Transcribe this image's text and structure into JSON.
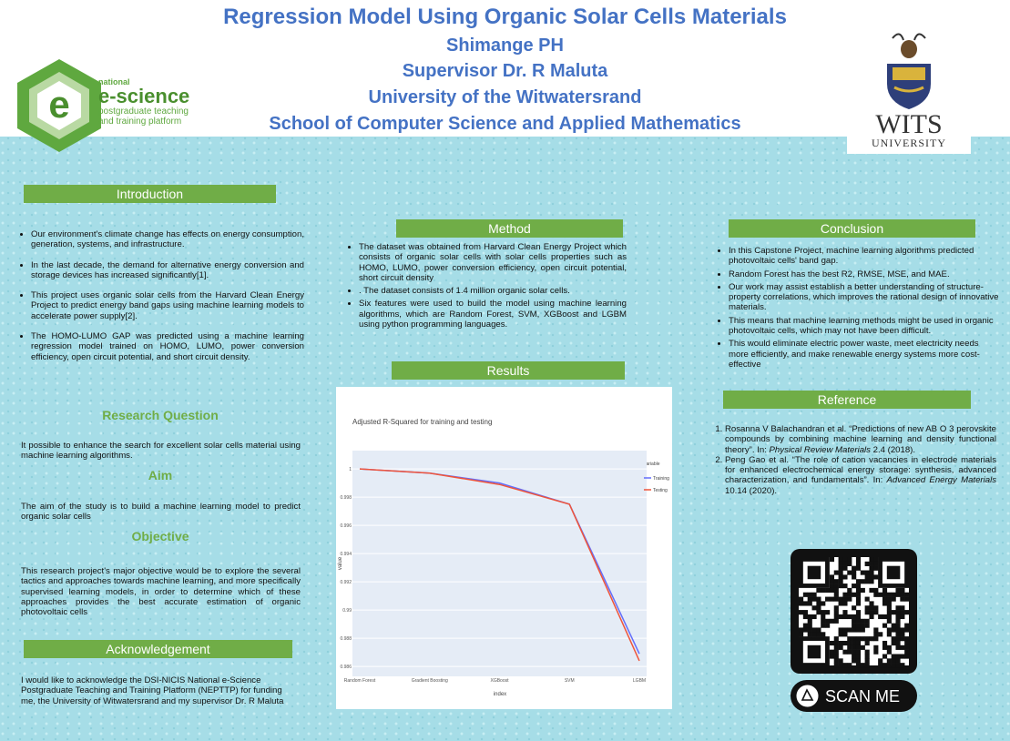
{
  "header": {
    "title": "Regression Model Using Organic Solar Cells Materials",
    "author": "Shimange PH",
    "supervisor": "Supervisor Dr. R Maluta",
    "university": "University of the Witwatersrand",
    "school": "School of Computer Science and Applied Mathematics"
  },
  "logos": {
    "escience_national": "national",
    "escience_name": "e-science",
    "escience_tagline": "postgraduate teaching and training platform",
    "wits_name": "WITS",
    "wits_sub": "UNIVERSITY"
  },
  "introduction": {
    "heading": "Introduction",
    "bullets": [
      "Our environment's climate change has effects on energy consumption, generation, systems, and infrastructure.",
      "In the last decade, the demand for alternative energy conversion and storage devices has increased significantly[1].",
      "This project uses organic solar cells from the Harvard Clean Energy Project to predict energy band gaps using machine learning models to accelerate power supply[2].",
      "The HOMO-LUMO GAP was predicted using a machine learning regression model trained on HOMO, LUMO, power conversion efficiency, open circuit potential, and short circuit density."
    ]
  },
  "research_question": {
    "heading": "Research Question",
    "text": "It possible to enhance the search for excellent solar cells material using machine learning algorithms."
  },
  "aim": {
    "heading": "Aim",
    "text": "The aim of the study is to build a machine learning model to predict organic solar cells"
  },
  "objective": {
    "heading": "Objective",
    "text": "This research project's major objective would be to explore the several tactics and approaches towards machine learning, and more specifically supervised learning models, in order to determine which of these approaches provides the best accurate estimation of organic photovoltaic cells"
  },
  "acknowledgement": {
    "heading": "Acknowledgement",
    "text": "I would like to acknowledge the DSI-NICIS National e-Science Postgraduate Teaching and Training Platform (NEPTTP) for funding me, the University of Witwatersrand and my supervisor Dr. R Maluta"
  },
  "method": {
    "heading": "Method",
    "bullets": [
      "The dataset was obtained from Harvard Clean Energy Project which consists of organic solar cells with solar cells properties such as HOMO, LUMO, power conversion efficiency, open circuit potential, short circuit density",
      ". The dataset consists of 1.4 million organic solar cells.",
      "Six features were used to build the model using machine learning algorithms, which are Random Forest, SVM, XGBoost and LGBM using python programming languages."
    ]
  },
  "results": {
    "heading": "Results"
  },
  "chart_data": {
    "type": "line",
    "title": "Adjusted R-Squared for training and testing",
    "x_label": "index",
    "y_label": "value",
    "legend_title": "variable",
    "categories": [
      "Random Forest",
      "Gradient Boosting",
      "XGBoost",
      "SVM",
      "LGBM"
    ],
    "series": [
      {
        "name": "Training",
        "color": "#636efa",
        "values": [
          1.0,
          0.9997,
          0.999,
          0.9975,
          0.9869
        ]
      },
      {
        "name": "Testing",
        "color": "#ef553b",
        "values": [
          1.0,
          0.9997,
          0.9989,
          0.9975,
          0.9864
        ]
      }
    ],
    "ylim": [
      0.9853,
      1.0013
    ],
    "yticks": [
      0.986,
      0.988,
      0.99,
      0.992,
      0.994,
      0.996,
      0.998,
      1
    ],
    "grid": true
  },
  "conclusion": {
    "heading": "Conclusion",
    "bullets": [
      "In this Capstone Project, machine learning algorithms predicted photovoltaic cells' band gap.",
      "Random Forest has the best R2, RMSE, MSE, and MAE.",
      "Our work may assist establish a better understanding of structure-property correlations, which improves the rational design of innovative materials.",
      "This means that machine learning methods might be used in organic photovoltaic cells, which may not have been difficult.",
      "This would eliminate electric power waste, meet electricity needs more efficiently, and make renewable energy systems more cost-effective"
    ]
  },
  "reference": {
    "heading": "Reference",
    "items": [
      {
        "before": "Rosanna V Balachandran et al. “Predictions of new AB O 3 perovskite compounds by combining machine learning and density functional theory”. In: ",
        "journal": "Physical Review Materials",
        "after": " 2.4 (2018)."
      },
      {
        "before": "Peng Gao et al. “The role of cation vacancies in electrode materials for enhanced electrochemical energy storage: synthesis, advanced characterization, and fundamentals”. In: ",
        "journal": "Advanced Energy Materials",
        "after": " 10.14 (2020)."
      }
    ]
  },
  "qr": {
    "label": "SCAN ME"
  }
}
